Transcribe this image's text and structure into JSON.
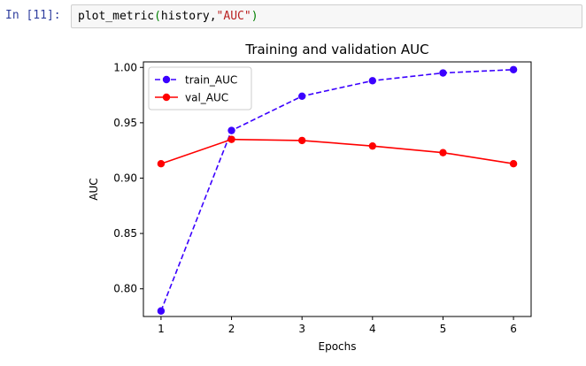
{
  "cell": {
    "prompt": "In [11]:",
    "code": {
      "fn": "plot_metric",
      "open": "(",
      "arg": "history,",
      "str": "\"AUC\"",
      "close": ")"
    }
  },
  "chart_data": {
    "type": "line",
    "title": "Training and validation AUC",
    "xlabel": "Epochs",
    "ylabel": "AUC",
    "x": [
      1,
      2,
      3,
      4,
      5,
      6
    ],
    "xticks": [
      "1",
      "2",
      "3",
      "4",
      "5",
      "6"
    ],
    "yticks": [
      "0.80",
      "0.85",
      "0.90",
      "0.95",
      "1.00"
    ],
    "ylim": [
      0.775,
      1.005
    ],
    "xlim": [
      0.75,
      6.25
    ],
    "grid": false,
    "legend_position": "top-left",
    "series": [
      {
        "name": "train_AUC",
        "color": "#3b00ff",
        "style": "dashed",
        "marker": "circle",
        "values": [
          0.78,
          0.943,
          0.974,
          0.988,
          0.995,
          0.998
        ]
      },
      {
        "name": "val_AUC",
        "color": "#ff0000",
        "style": "solid",
        "marker": "circle",
        "values": [
          0.913,
          0.935,
          0.934,
          0.929,
          0.923,
          0.913
        ]
      }
    ]
  }
}
